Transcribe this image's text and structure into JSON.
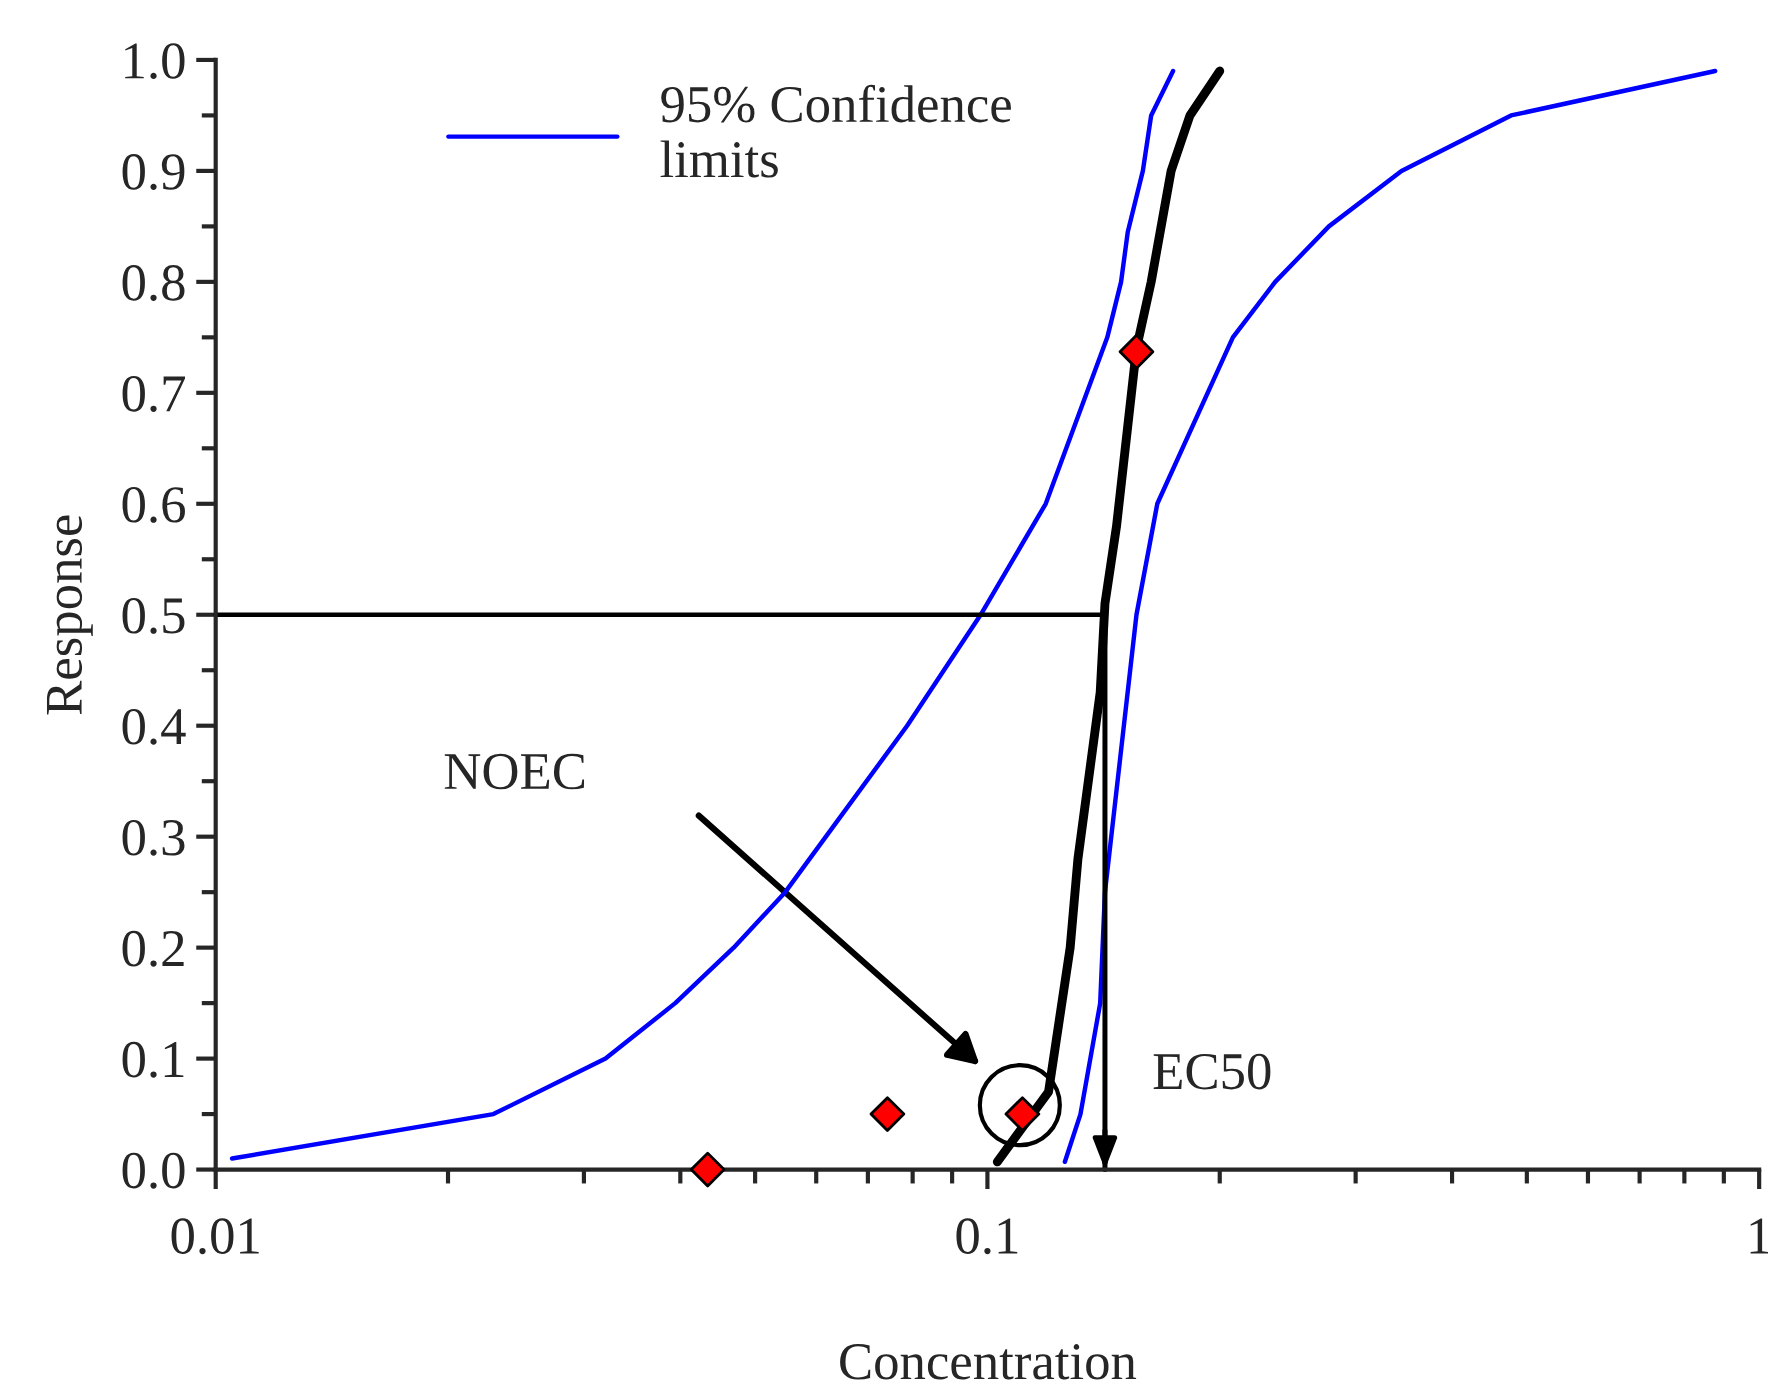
{
  "chart_data": {
    "type": "line",
    "xlabel": "Concentration",
    "ylabel": "Response",
    "log": "x",
    "xlim": [
      0.01,
      1
    ],
    "ylim": [
      0,
      1
    ],
    "xticks": [
      0.01,
      0.1,
      1
    ],
    "yticks": [
      {
        "value": 0,
        "label": "0.0"
      },
      {
        "value": 0.1,
        "label": "0.1"
      },
      {
        "value": 0.2,
        "label": "0.2"
      },
      {
        "value": 0.3,
        "label": "0.3"
      },
      {
        "value": 0.4,
        "label": "0.4"
      },
      {
        "value": 0.5,
        "label": "0.5"
      },
      {
        "value": 0.6,
        "label": "0.6"
      },
      {
        "value": 0.7,
        "label": "0.7"
      },
      {
        "value": 0.8,
        "label": "0.8"
      },
      {
        "value": 0.9,
        "label": "0.9"
      },
      {
        "value": 1,
        "label": "1.0"
      }
    ],
    "grid": false,
    "legend": "top left",
    "marker": "none",
    "line_style": "solid",
    "series": [
      {
        "name": "95% Confidence\nlimits",
        "color": "#0000ff",
        "x": [
          0.0105,
          0.0229,
          0.032,
          0.0394,
          0.0469,
          0.0547,
          0.0787,
          0.098,
          0.119,
          0.143,
          0.149,
          0.152,
          0.159,
          0.163,
          0.174
        ],
        "values": [
          0.01,
          0.05,
          0.1,
          0.15,
          0.2,
          0.25,
          0.4,
          0.5,
          0.6,
          0.75,
          0.8,
          0.845,
          0.9,
          0.95,
          0.99
        ]
      },
      {
        "color": "#0000ff",
        "x": [
          0.126,
          0.132,
          0.14,
          0.142,
          0.156,
          0.166,
          0.208,
          0.236,
          0.277,
          0.344,
          0.477,
          0.877
        ],
        "values": [
          0.007,
          0.05,
          0.15,
          0.25,
          0.5,
          0.6,
          0.75,
          0.8,
          0.85,
          0.9,
          0.95,
          0.99
        ]
      },
      {
        "color": "#000000",
        "x": [
          0.103,
          0.12,
          0.128,
          0.131,
          0.14,
          0.142,
          0.147,
          0.156,
          0.163,
          0.173,
          0.183,
          0.2
        ],
        "values": [
          0.007,
          0.07,
          0.2,
          0.28,
          0.43,
          0.51,
          0.58,
          0.74,
          0.8,
          0.9,
          0.95,
          0.99
        ]
      },
      {
        "type": "scatter",
        "marker": "diamond",
        "color": "#ff0000",
        "x": [
          0.0434,
          0.0742,
          0.111,
          0.156
        ],
        "values": [
          0,
          0.05,
          0.05,
          0.737
        ]
      }
    ],
    "ref_lines": [
      {
        "axis": "y",
        "value": 0.5,
        "color": "#000000"
      },
      {
        "axis": "x",
        "value": 0.142,
        "color": "#000000",
        "label": "EC50"
      }
    ],
    "annotations": [
      "NOEC"
    ]
  }
}
